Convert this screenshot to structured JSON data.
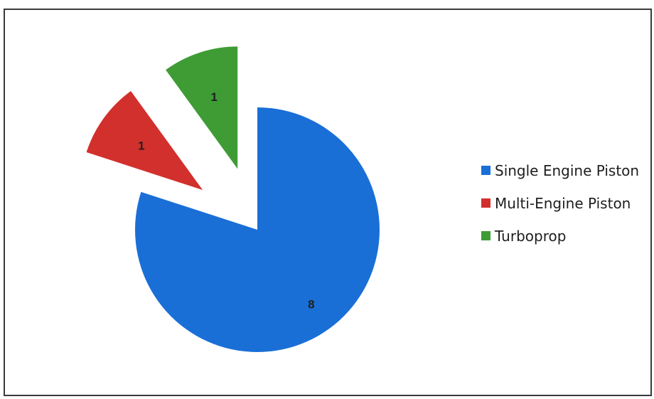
{
  "chart_data": {
    "type": "pie",
    "exploded": true,
    "categories": [
      "Single Engine Piston",
      "Multi-Engine Piston",
      "Turboprop"
    ],
    "values": [
      8,
      1,
      1
    ],
    "colors": [
      "#1a6fd6",
      "#d2302c",
      "#3f9c35"
    ],
    "data_labels": [
      "8",
      "1",
      "1"
    ],
    "legend_position": "right"
  }
}
